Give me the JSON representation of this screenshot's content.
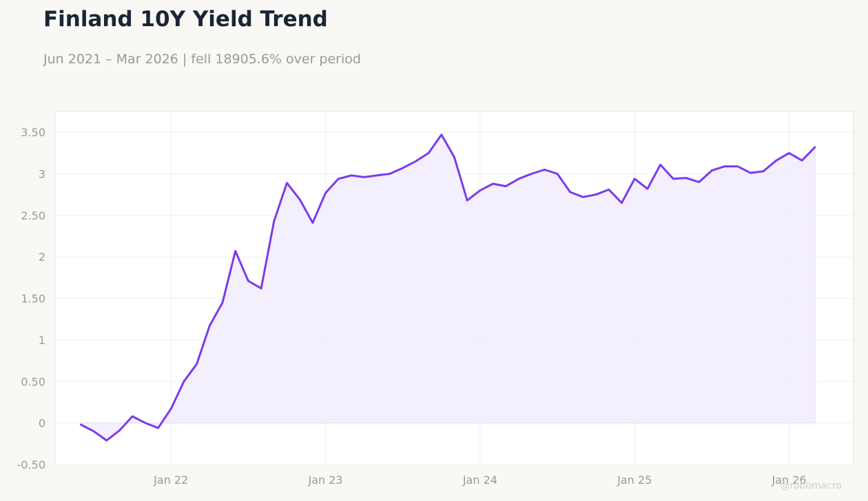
{
  "header": {
    "title": "Finland 10Y Yield Trend",
    "subtitle": "Jun 2021 – Mar 2026 | fell 18905.6% over period"
  },
  "watermark": "@robomacro",
  "colors": {
    "line": "#7c3aed",
    "fill": "#f1ecfd",
    "grid": "#efefef",
    "background": "#f9f8f5",
    "plot_background": "#ffffff"
  },
  "chart_data": {
    "type": "area",
    "title": "Finland 10Y Yield Trend",
    "xlabel": "",
    "ylabel": "",
    "grid": true,
    "ylim": [
      -0.5,
      3.75
    ],
    "xlim": [
      "2021-04",
      "2026-06"
    ],
    "y_ticks": [
      -0.5,
      0,
      0.5,
      1,
      1.5,
      2,
      2.5,
      3,
      3.5
    ],
    "y_tick_labels": [
      "-0.50",
      "0",
      "0.50",
      "1",
      "1.50",
      "2",
      "2.50",
      "3",
      "3.50"
    ],
    "x_ticks": [
      "2022-01",
      "2023-01",
      "2024-01",
      "2025-01",
      "2026-01"
    ],
    "x_tick_labels": [
      "Jan 22",
      "Jan 23",
      "Jan 24",
      "Jan 25",
      "Jan 26"
    ],
    "x": [
      "2021-06",
      "2021-07",
      "2021-08",
      "2021-09",
      "2021-10",
      "2021-11",
      "2021-12",
      "2022-01",
      "2022-02",
      "2022-03",
      "2022-04",
      "2022-05",
      "2022-06",
      "2022-07",
      "2022-08",
      "2022-09",
      "2022-10",
      "2022-11",
      "2022-12",
      "2023-01",
      "2023-02",
      "2023-03",
      "2023-04",
      "2023-05",
      "2023-06",
      "2023-07",
      "2023-08",
      "2023-09",
      "2023-10",
      "2023-11",
      "2023-12",
      "2024-01",
      "2024-02",
      "2024-03",
      "2024-04",
      "2024-05",
      "2024-06",
      "2024-07",
      "2024-08",
      "2024-09",
      "2024-10",
      "2024-11",
      "2024-12",
      "2025-01",
      "2025-02",
      "2025-03",
      "2025-04",
      "2025-05",
      "2025-06",
      "2025-07",
      "2025-08",
      "2025-09",
      "2025-10",
      "2025-11",
      "2025-12",
      "2026-01",
      "2026-02",
      "2026-03"
    ],
    "series": [
      {
        "values": [
          -0.02,
          -0.1,
          -0.21,
          -0.09,
          0.08,
          0.0,
          -0.06,
          0.17,
          0.5,
          0.71,
          1.17,
          1.45,
          2.07,
          1.71,
          1.62,
          2.43,
          2.89,
          2.69,
          2.41,
          2.77,
          2.94,
          2.98,
          2.96,
          2.98,
          3.0,
          3.07,
          3.15,
          3.25,
          3.47,
          3.2,
          2.68,
          2.8,
          2.88,
          2.85,
          2.94,
          3.0,
          3.05,
          3.0,
          2.78,
          2.72,
          2.75,
          2.81,
          2.65,
          2.94,
          2.82,
          3.11,
          2.94,
          2.95,
          2.9,
          3.04,
          3.09,
          3.09,
          3.01,
          3.03,
          3.16,
          3.25,
          3.16,
          3.32
        ]
      }
    ]
  }
}
